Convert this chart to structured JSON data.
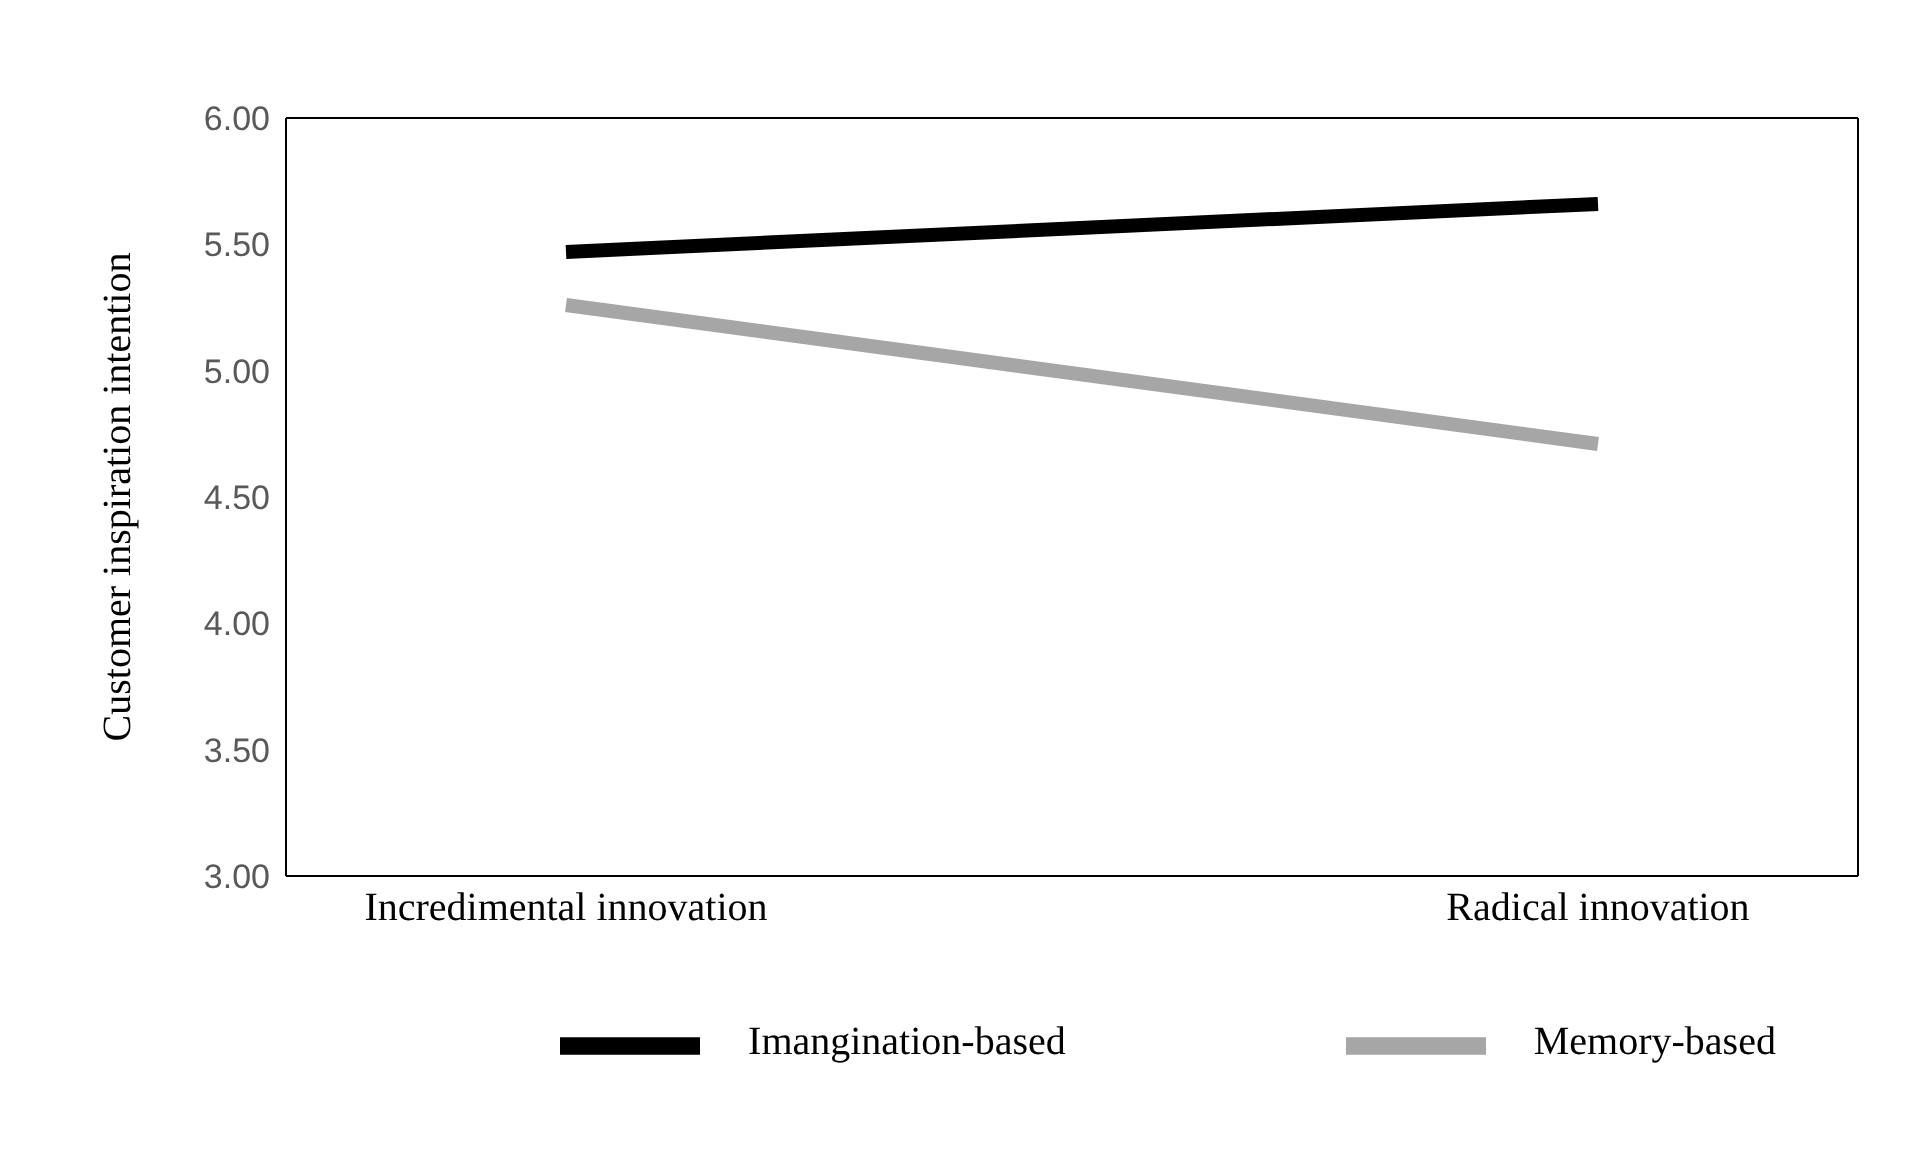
{
  "chart_data": {
    "type": "line",
    "ylabel": "Customer inspiration intention",
    "categories": [
      "Incredimental  innovation",
      "Radical innovation"
    ],
    "series": [
      {
        "name": "Imangination-based",
        "color": "#000000",
        "values": [
          5.47,
          5.66
        ]
      },
      {
        "name": "Memory-based",
        "color": "#a6a6a6",
        "values": [
          5.26,
          4.71
        ]
      }
    ],
    "ylim": [
      3,
      6
    ],
    "yticks": [
      {
        "value": 3,
        "label": "3.00"
      },
      {
        "value": 3.5,
        "label": "3.50"
      },
      {
        "value": 4,
        "label": "4.00"
      },
      {
        "value": 4.5,
        "label": "4.50"
      },
      {
        "value": 5,
        "label": "5.00"
      },
      {
        "value": 5.5,
        "label": "5.50"
      },
      {
        "value": 6,
        "label": "6.00"
      }
    ],
    "legend": "bottom",
    "marker": "none",
    "line_style": "solid"
  }
}
